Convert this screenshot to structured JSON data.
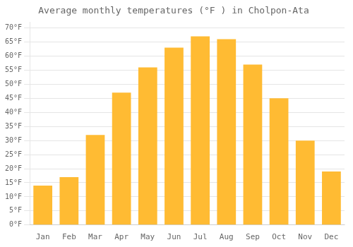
{
  "chart_data": {
    "type": "bar",
    "title": "Average monthly temperatures (°F ) in Cholpon-Ata",
    "categories": [
      "Jan",
      "Feb",
      "Mar",
      "Apr",
      "May",
      "Jun",
      "Jul",
      "Aug",
      "Sep",
      "Oct",
      "Nov",
      "Dec"
    ],
    "values": [
      14,
      17,
      32,
      47,
      56,
      63,
      67,
      66,
      57,
      45,
      30,
      19
    ],
    "color": "#FFBB33",
    "ylim": [
      0,
      72
    ],
    "yticks": [
      {
        "value": 0,
        "label": "0°F"
      },
      {
        "value": 5,
        "label": "5°F"
      },
      {
        "value": 10,
        "label": "10°F"
      },
      {
        "value": 15,
        "label": "15°F"
      },
      {
        "value": 20,
        "label": "20°F"
      },
      {
        "value": 25,
        "label": "25°F"
      },
      {
        "value": 30,
        "label": "30°F"
      },
      {
        "value": 35,
        "label": "35°F"
      },
      {
        "value": 40,
        "label": "40°F"
      },
      {
        "value": 45,
        "label": "45°F"
      },
      {
        "value": 50,
        "label": "50°F"
      },
      {
        "value": 55,
        "label": "55°F"
      },
      {
        "value": 60,
        "label": "60°F"
      },
      {
        "value": 65,
        "label": "65°F"
      },
      {
        "value": 70,
        "label": "70°F"
      }
    ],
    "grid": true
  }
}
